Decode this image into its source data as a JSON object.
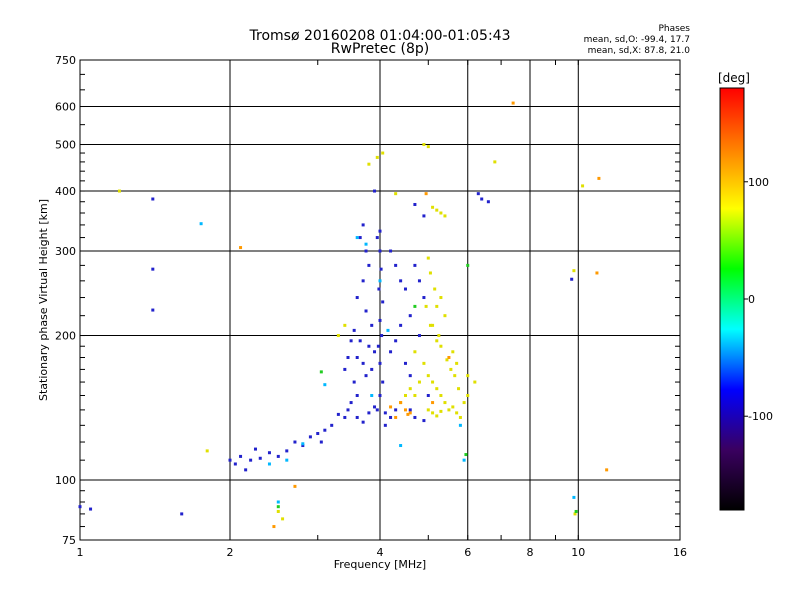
{
  "chart_data": {
    "type": "scatter",
    "title": "Tromsø 20160208 01:04:00-01:05:43",
    "subtitle": "RwPretec (8p)",
    "xlabel": "Frequency [MHz]",
    "ylabel": "Stationary phase Virtual Height [km]",
    "xscale": "log",
    "yscale": "log",
    "xlim": [
      1,
      16
    ],
    "ylim": [
      75,
      750
    ],
    "x_ticks": [
      1,
      2,
      4,
      6,
      8,
      10,
      16
    ],
    "y_ticks": [
      75,
      100,
      200,
      300,
      400,
      500,
      600,
      750
    ],
    "grid": true,
    "stats": {
      "heading": "Phases",
      "line_o": "mean, sd,O: -99.4, 17.7",
      "line_x": "mean, sd,X:  87.8, 21.0"
    },
    "colorbar": {
      "label": "[deg]",
      "range": [
        -180,
        180
      ],
      "ticks": [
        100,
        0,
        -100
      ],
      "colormap": [
        "#000000",
        "#3a0060",
        "#0000ff",
        "#00ffff",
        "#00ff00",
        "#ffff00",
        "#ff8000",
        "#ff0000"
      ]
    },
    "series": [
      {
        "points": [
          [
            3.7,
            340
          ],
          [
            3.75,
            300
          ],
          [
            3.65,
            320
          ],
          [
            3.8,
            280
          ],
          [
            3.7,
            260
          ],
          [
            3.6,
            240
          ],
          [
            3.75,
            225
          ],
          [
            3.85,
            210
          ],
          [
            3.55,
            205
          ],
          [
            3.65,
            195
          ],
          [
            3.8,
            190
          ],
          [
            3.9,
            185
          ],
          [
            3.6,
            180
          ],
          [
            3.7,
            175
          ],
          [
            3.85,
            170
          ],
          [
            3.75,
            165
          ],
          [
            3.95,
            320
          ],
          [
            4.0,
            330
          ],
          [
            4.0,
            300
          ],
          [
            4.02,
            275
          ],
          [
            3.98,
            250
          ],
          [
            4.05,
            235
          ],
          [
            4.0,
            215
          ],
          [
            4.03,
            200
          ],
          [
            3.97,
            190
          ],
          [
            4.0,
            175
          ],
          [
            4.05,
            160
          ],
          [
            4.0,
            150
          ],
          [
            3.95,
            140
          ],
          [
            4.1,
            130
          ],
          [
            4.2,
            300
          ],
          [
            4.3,
            280
          ],
          [
            4.4,
            260
          ],
          [
            4.5,
            250
          ],
          [
            4.7,
            280
          ],
          [
            4.8,
            260
          ],
          [
            4.9,
            240
          ],
          [
            4.6,
            220
          ],
          [
            4.4,
            210
          ],
          [
            4.3,
            195
          ],
          [
            4.2,
            185
          ],
          [
            4.5,
            175
          ],
          [
            4.6,
            165
          ],
          [
            3.5,
            195
          ],
          [
            3.45,
            180
          ],
          [
            3.4,
            170
          ],
          [
            3.55,
            160
          ],
          [
            3.6,
            150
          ],
          [
            3.5,
            145
          ],
          [
            3.45,
            140
          ],
          [
            3.3,
            137
          ],
          [
            3.4,
            135
          ],
          [
            3.6,
            135
          ],
          [
            3.7,
            132
          ],
          [
            3.8,
            138
          ],
          [
            3.9,
            142
          ],
          [
            4.1,
            138
          ],
          [
            4.2,
            135
          ],
          [
            4.3,
            140
          ],
          [
            3.2,
            130
          ],
          [
            3.1,
            127
          ],
          [
            3.0,
            125
          ],
          [
            2.9,
            123
          ],
          [
            3.05,
            120
          ],
          [
            2.8,
            118
          ],
          [
            2.6,
            115
          ],
          [
            2.5,
            112
          ],
          [
            2.4,
            114
          ],
          [
            2.3,
            111
          ],
          [
            2.2,
            110
          ],
          [
            2.1,
            112
          ],
          [
            2.05,
            108
          ],
          [
            2.0,
            110
          ],
          [
            2.15,
            105
          ],
          [
            2.25,
            116
          ],
          [
            2.7,
            120
          ],
          [
            4.6,
            140
          ],
          [
            4.7,
            135
          ],
          [
            4.9,
            133
          ],
          [
            5.0,
            150
          ],
          [
            4.8,
            200
          ],
          [
            6.3,
            395
          ],
          [
            6.4,
            385
          ],
          [
            6.6,
            380
          ],
          [
            4.9,
            355
          ],
          [
            4.7,
            375
          ],
          [
            3.9,
            400
          ],
          [
            1.4,
            385
          ],
          [
            1.4,
            275
          ],
          [
            1.4,
            226
          ],
          [
            1.0,
            88
          ],
          [
            1.05,
            87
          ],
          [
            1.6,
            85
          ],
          [
            9.7,
            262
          ]
        ]
      },
      {
        "points": [
          [
            5.2,
            365
          ],
          [
            5.3,
            360
          ],
          [
            5.4,
            355
          ],
          [
            5.1,
            370
          ],
          [
            5.0,
            290
          ],
          [
            5.05,
            270
          ],
          [
            5.15,
            250
          ],
          [
            5.2,
            230
          ],
          [
            5.1,
            210
          ],
          [
            5.2,
            195
          ],
          [
            5.3,
            190
          ],
          [
            4.9,
            175
          ],
          [
            5.0,
            165
          ],
          [
            5.1,
            160
          ],
          [
            5.2,
            155
          ],
          [
            5.3,
            150
          ],
          [
            5.4,
            145
          ],
          [
            5.5,
            140
          ],
          [
            5.6,
            142
          ],
          [
            5.7,
            138
          ],
          [
            5.8,
            135
          ],
          [
            5.9,
            145
          ],
          [
            6.0,
            150
          ],
          [
            5.75,
            155
          ],
          [
            5.65,
            165
          ],
          [
            5.55,
            170
          ],
          [
            5.45,
            178
          ],
          [
            4.8,
            160
          ],
          [
            4.7,
            150
          ],
          [
            4.6,
            155
          ],
          [
            5.0,
            140
          ],
          [
            5.1,
            138
          ],
          [
            5.2,
            136
          ],
          [
            5.3,
            139
          ],
          [
            4.95,
            230
          ],
          [
            5.05,
            210
          ],
          [
            5.3,
            240
          ],
          [
            5.4,
            220
          ],
          [
            5.25,
            200
          ],
          [
            4.7,
            185
          ],
          [
            4.5,
            150
          ],
          [
            4.4,
            145
          ],
          [
            3.3,
            200
          ],
          [
            3.4,
            210
          ],
          [
            5.6,
            185
          ],
          [
            5.7,
            175
          ],
          [
            6.0,
            165
          ],
          [
            6.2,
            160
          ],
          [
            4.9,
            500
          ],
          [
            5.0,
            495
          ],
          [
            4.3,
            395
          ],
          [
            3.95,
            470
          ],
          [
            4.05,
            480
          ],
          [
            3.8,
            455
          ],
          [
            6.8,
            460
          ],
          [
            2.5,
            86
          ],
          [
            2.55,
            83
          ],
          [
            9.85,
            85
          ],
          [
            10.2,
            410
          ],
          [
            9.8,
            273
          ],
          [
            1.2,
            400
          ],
          [
            1.8,
            115
          ]
        ]
      },
      {
        "points": [
          [
            4.4,
            145
          ],
          [
            4.5,
            140
          ],
          [
            4.6,
            138
          ],
          [
            4.3,
            135
          ],
          [
            5.1,
            145
          ],
          [
            4.2,
            142
          ],
          [
            4.55,
            137
          ],
          [
            5.5,
            180
          ],
          [
            4.95,
            395
          ],
          [
            2.45,
            80
          ],
          [
            10.9,
            270
          ],
          [
            11.4,
            105
          ],
          [
            11.0,
            425
          ],
          [
            7.4,
            610
          ],
          [
            2.1,
            305
          ],
          [
            2.7,
            97
          ]
        ]
      },
      {
        "points": [
          [
            3.6,
            320
          ],
          [
            3.75,
            310
          ],
          [
            4.0,
            260
          ],
          [
            4.15,
            205
          ],
          [
            3.85,
            150
          ],
          [
            3.1,
            158
          ],
          [
            2.8,
            119
          ],
          [
            2.6,
            110
          ],
          [
            2.4,
            108
          ],
          [
            1.75,
            342
          ],
          [
            2.5,
            90
          ],
          [
            9.8,
            92
          ],
          [
            5.9,
            110
          ],
          [
            5.8,
            130
          ],
          [
            4.4,
            118
          ]
        ]
      },
      {
        "points": [
          [
            6.0,
            280
          ],
          [
            2.5,
            88
          ],
          [
            9.9,
            86
          ],
          [
            3.05,
            168
          ],
          [
            4.7,
            230
          ],
          [
            5.95,
            113
          ]
        ]
      }
    ],
    "legend": []
  }
}
